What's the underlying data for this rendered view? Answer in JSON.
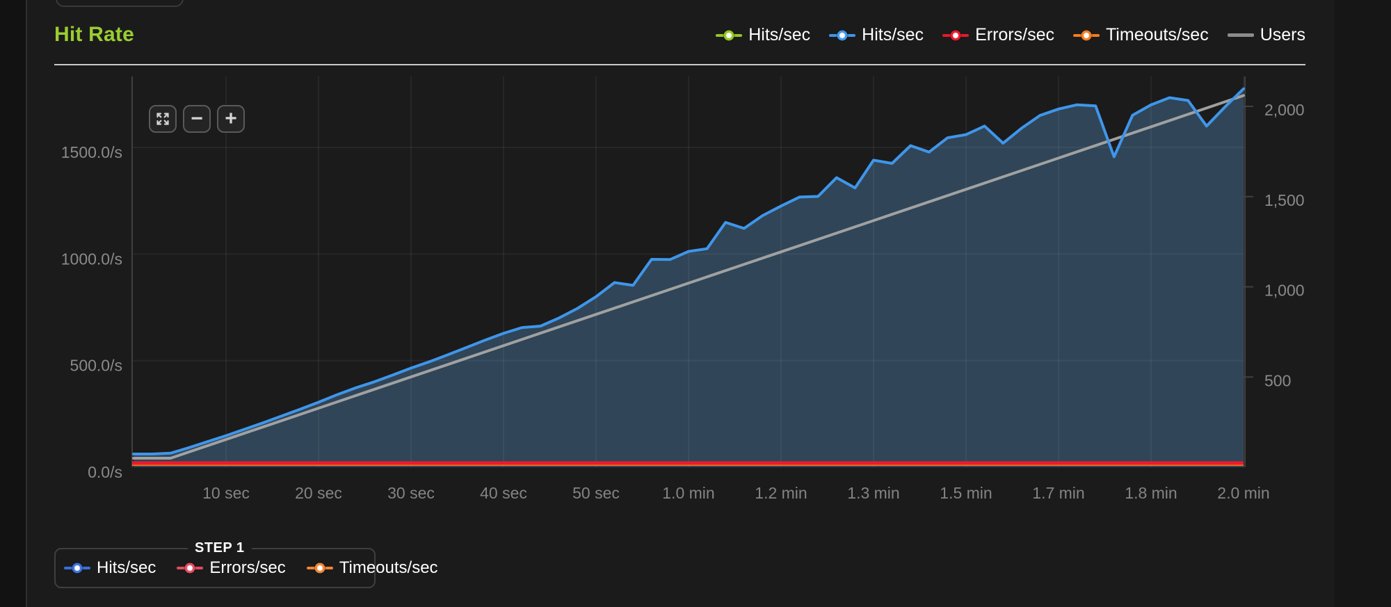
{
  "header": {
    "title": "Hit Rate",
    "title_color": "#9acd32"
  },
  "legend": {
    "items": [
      {
        "label": "Hits/sec",
        "color": "#94c523",
        "marker": "line-dot"
      },
      {
        "label": "Hits/sec",
        "color": "#3f96ea",
        "marker": "line-dot"
      },
      {
        "label": "Errors/sec",
        "color": "#e8192c",
        "marker": "line-dot"
      },
      {
        "label": "Timeouts/sec",
        "color": "#ef7d23",
        "marker": "line-dot"
      },
      {
        "label": "Users",
        "color": "#8c8c8c",
        "marker": "line"
      }
    ]
  },
  "toolbar": {
    "reset_zoom_icon": "expand-arrows",
    "zoom_out_label": "−",
    "zoom_in_label": "+"
  },
  "chart_data": {
    "type": "line",
    "title": "Hit Rate",
    "grid": true,
    "x_axis": {
      "unit_sequence": "seconds",
      "ticks": [
        {
          "t": 10,
          "label": "10 sec"
        },
        {
          "t": 20,
          "label": "20 sec"
        },
        {
          "t": 30,
          "label": "30 sec"
        },
        {
          "t": 40,
          "label": "40 sec"
        },
        {
          "t": 50,
          "label": "50 sec"
        },
        {
          "t": 60,
          "label": "1.0 min"
        },
        {
          "t": 70,
          "label": "1.2 min"
        },
        {
          "t": 80,
          "label": "1.3 min"
        },
        {
          "t": 90,
          "label": "1.5 min"
        },
        {
          "t": 100,
          "label": "1.7 min"
        },
        {
          "t": 110,
          "label": "1.8 min"
        },
        {
          "t": 120,
          "label": "2.0 min"
        }
      ],
      "range_sec": [
        0,
        120
      ]
    },
    "y_axis_left": {
      "unit": "/s",
      "tick_values": [
        0,
        500,
        1000,
        1500
      ],
      "tick_labels": [
        "0.0/s",
        "500.0/s",
        "1000.0/s",
        "1500.0/s"
      ],
      "gridline_values": [
        500,
        1000,
        1500
      ],
      "max": 1833
    },
    "y_axis_right": {
      "name": "Users",
      "tick_values": [
        500,
        1000,
        1500,
        2000
      ],
      "tick_labels": [
        "500",
        "1,000",
        "1,500",
        "2,000"
      ],
      "max": 2166
    },
    "series": [
      {
        "name": "Hits/sec",
        "color": "#3f96ea",
        "axis": "left",
        "area_fill": "rgba(93,158,215,0.32)",
        "start_sec": 0,
        "sample_interval_sec": 2,
        "values": [
          62,
          62,
          66,
          92,
          120,
          148,
          178,
          208,
          240,
          272,
          305,
          340,
          372,
          400,
          432,
          465,
          495,
          528,
          562,
          596,
          628,
          655,
          662,
          700,
          745,
          800,
          866,
          853,
          975,
          974,
          1012,
          1025,
          1148,
          1120,
          1180,
          1225,
          1267,
          1270,
          1358,
          1310,
          1440,
          1425,
          1508,
          1478,
          1545,
          1560,
          1600,
          1520,
          1590,
          1650,
          1680,
          1700,
          1695,
          1456,
          1651,
          1700,
          1733,
          1720,
          1600,
          1690,
          1775
        ]
      },
      {
        "name": "Users",
        "color": "#a6a6a6",
        "axis": "right",
        "points": [
          {
            "t": 0,
            "v": 50
          },
          {
            "t": 4,
            "v": 50
          },
          {
            "t": 120,
            "v": 2060
          }
        ]
      },
      {
        "name": "Errors/sec",
        "color": "#ed1b2c",
        "axis": "left",
        "constant": 0
      },
      {
        "name": "Timeouts/sec",
        "color": "#ef7d23",
        "axis": "left",
        "constant": 0
      }
    ]
  },
  "step_panel": {
    "title": "STEP 1",
    "items": [
      {
        "label": "Hits/sec",
        "color": "#3a6fd8"
      },
      {
        "label": "Errors/sec",
        "color": "#e24b5e"
      },
      {
        "label": "Timeouts/sec",
        "color": "#ef8432"
      }
    ]
  }
}
